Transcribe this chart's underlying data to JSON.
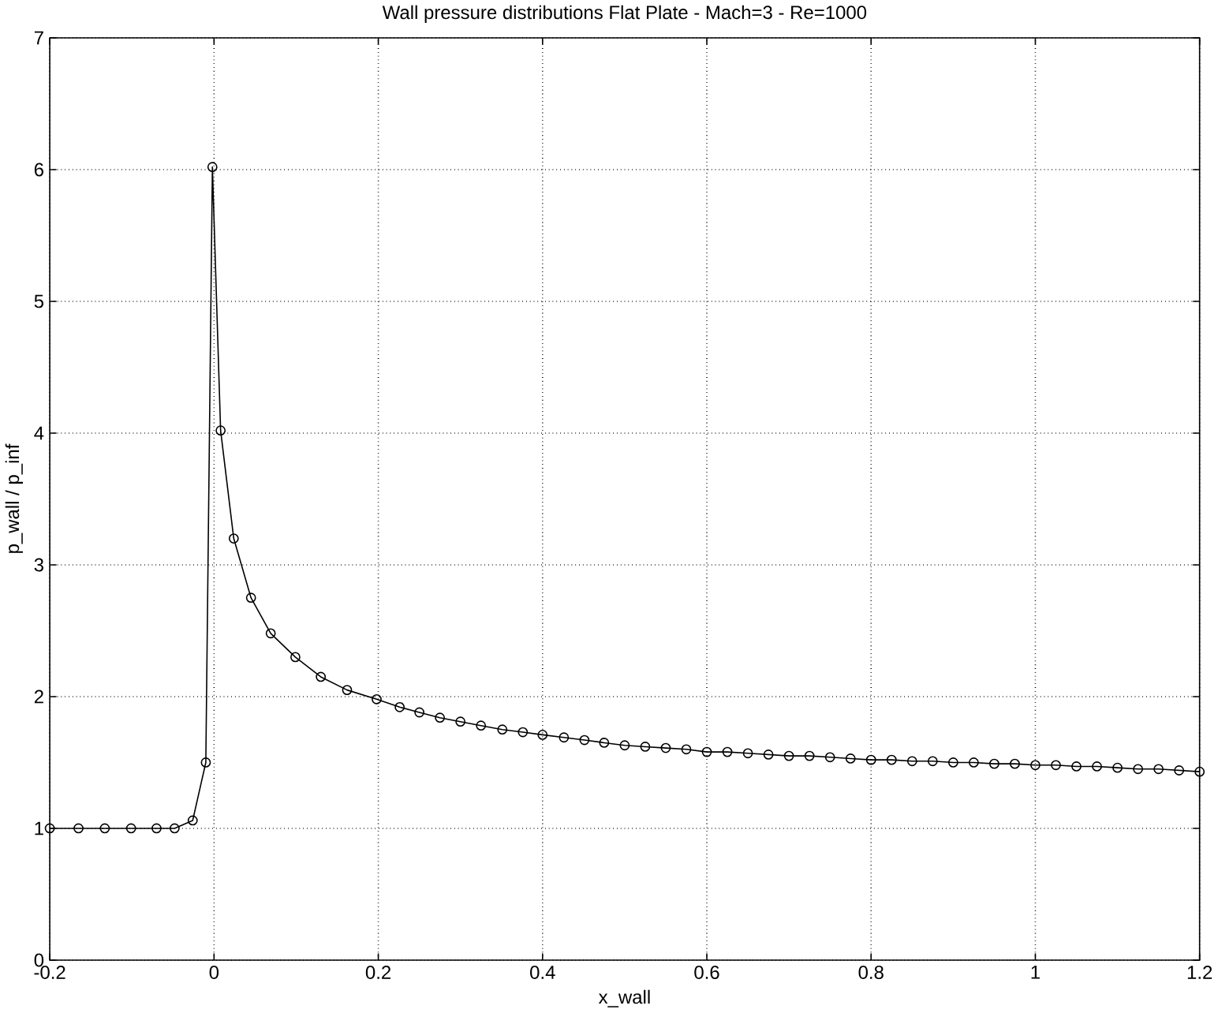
{
  "chart_data": {
    "type": "line",
    "title": "Wall pressure distributions Flat Plate - Mach=3 - Re=1000",
    "xlabel": "x_wall",
    "ylabel": "p_wall / p_inf",
    "x": [
      -0.2,
      -0.165,
      -0.133,
      -0.101,
      -0.07,
      -0.048,
      -0.026,
      -0.01,
      -0.002,
      0.008,
      0.024,
      0.045,
      0.069,
      0.099,
      0.13,
      0.162,
      0.198,
      0.226,
      0.25,
      0.275,
      0.3,
      0.325,
      0.351,
      0.376,
      0.4,
      0.426,
      0.451,
      0.475,
      0.5,
      0.525,
      0.55,
      0.575,
      0.6,
      0.625,
      0.65,
      0.675,
      0.7,
      0.725,
      0.75,
      0.775,
      0.8,
      0.825,
      0.85,
      0.875,
      0.9,
      0.925,
      0.95,
      0.975,
      1.0,
      1.025,
      1.05,
      1.075,
      1.1,
      1.125,
      1.15,
      1.175,
      1.2
    ],
    "series": [
      {
        "color": "#000000",
        "values": [
          1.0,
          1.0,
          1.0,
          1.0,
          1.0,
          1.0,
          1.06,
          1.5,
          6.02,
          4.02,
          3.2,
          2.75,
          2.48,
          2.3,
          2.15,
          2.05,
          1.98,
          1.92,
          1.88,
          1.84,
          1.81,
          1.78,
          1.75,
          1.73,
          1.71,
          1.69,
          1.67,
          1.65,
          1.63,
          1.62,
          1.61,
          1.6,
          1.58,
          1.58,
          1.57,
          1.56,
          1.55,
          1.55,
          1.54,
          1.53,
          1.52,
          1.52,
          1.51,
          1.51,
          1.5,
          1.5,
          1.49,
          1.49,
          1.48,
          1.48,
          1.47,
          1.47,
          1.46,
          1.45,
          1.45,
          1.44,
          1.43
        ]
      }
    ],
    "xlim": [
      -0.2,
      1.2
    ],
    "ylim": [
      0,
      7
    ],
    "xticks": [
      -0.2,
      0,
      0.2,
      0.4,
      0.6,
      0.8,
      1,
      1.2
    ],
    "yticks": [
      0,
      1,
      2,
      3,
      4,
      5,
      6,
      7
    ],
    "grid": true,
    "marker": "circle",
    "line_style": "solid"
  }
}
